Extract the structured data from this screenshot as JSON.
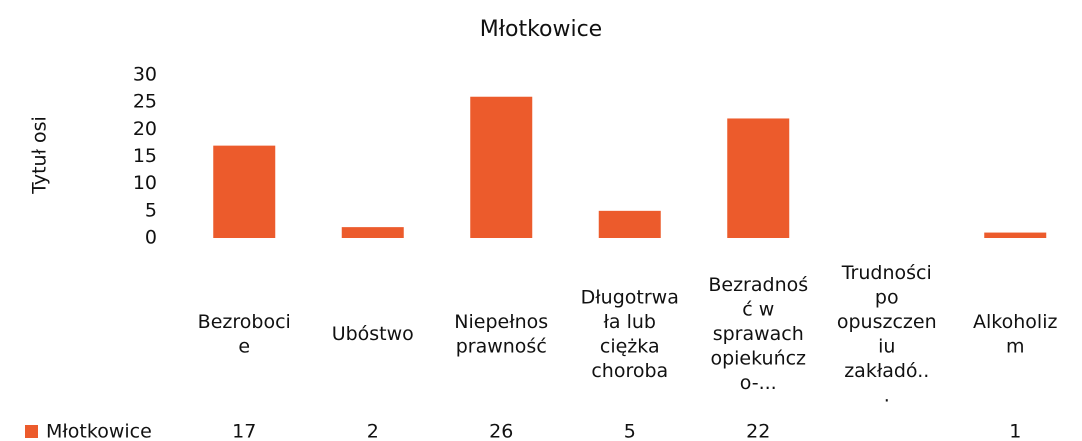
{
  "chart_data": {
    "type": "bar",
    "title": "Młotkowice",
    "y_label": "Tytuł osi",
    "categories": [
      "Bezrobocie",
      "Ubóstwo",
      "Niepełnosprawność",
      "Długotrwała lub ciężka choroba",
      "Bezradność w sprawach opiekuńczo-...",
      "Trudności po opuszczeniu zakładó...",
      "Alkoholizm"
    ],
    "series": [
      {
        "name": "Młotkowice",
        "color": "#ec5b2c",
        "values": [
          17,
          2,
          26,
          5,
          22,
          null,
          1
        ]
      }
    ],
    "ylim": [
      0,
      30
    ],
    "yticks": [
      0,
      5,
      10,
      15,
      20,
      25,
      30
    ],
    "grid": false,
    "data_table": true
  }
}
